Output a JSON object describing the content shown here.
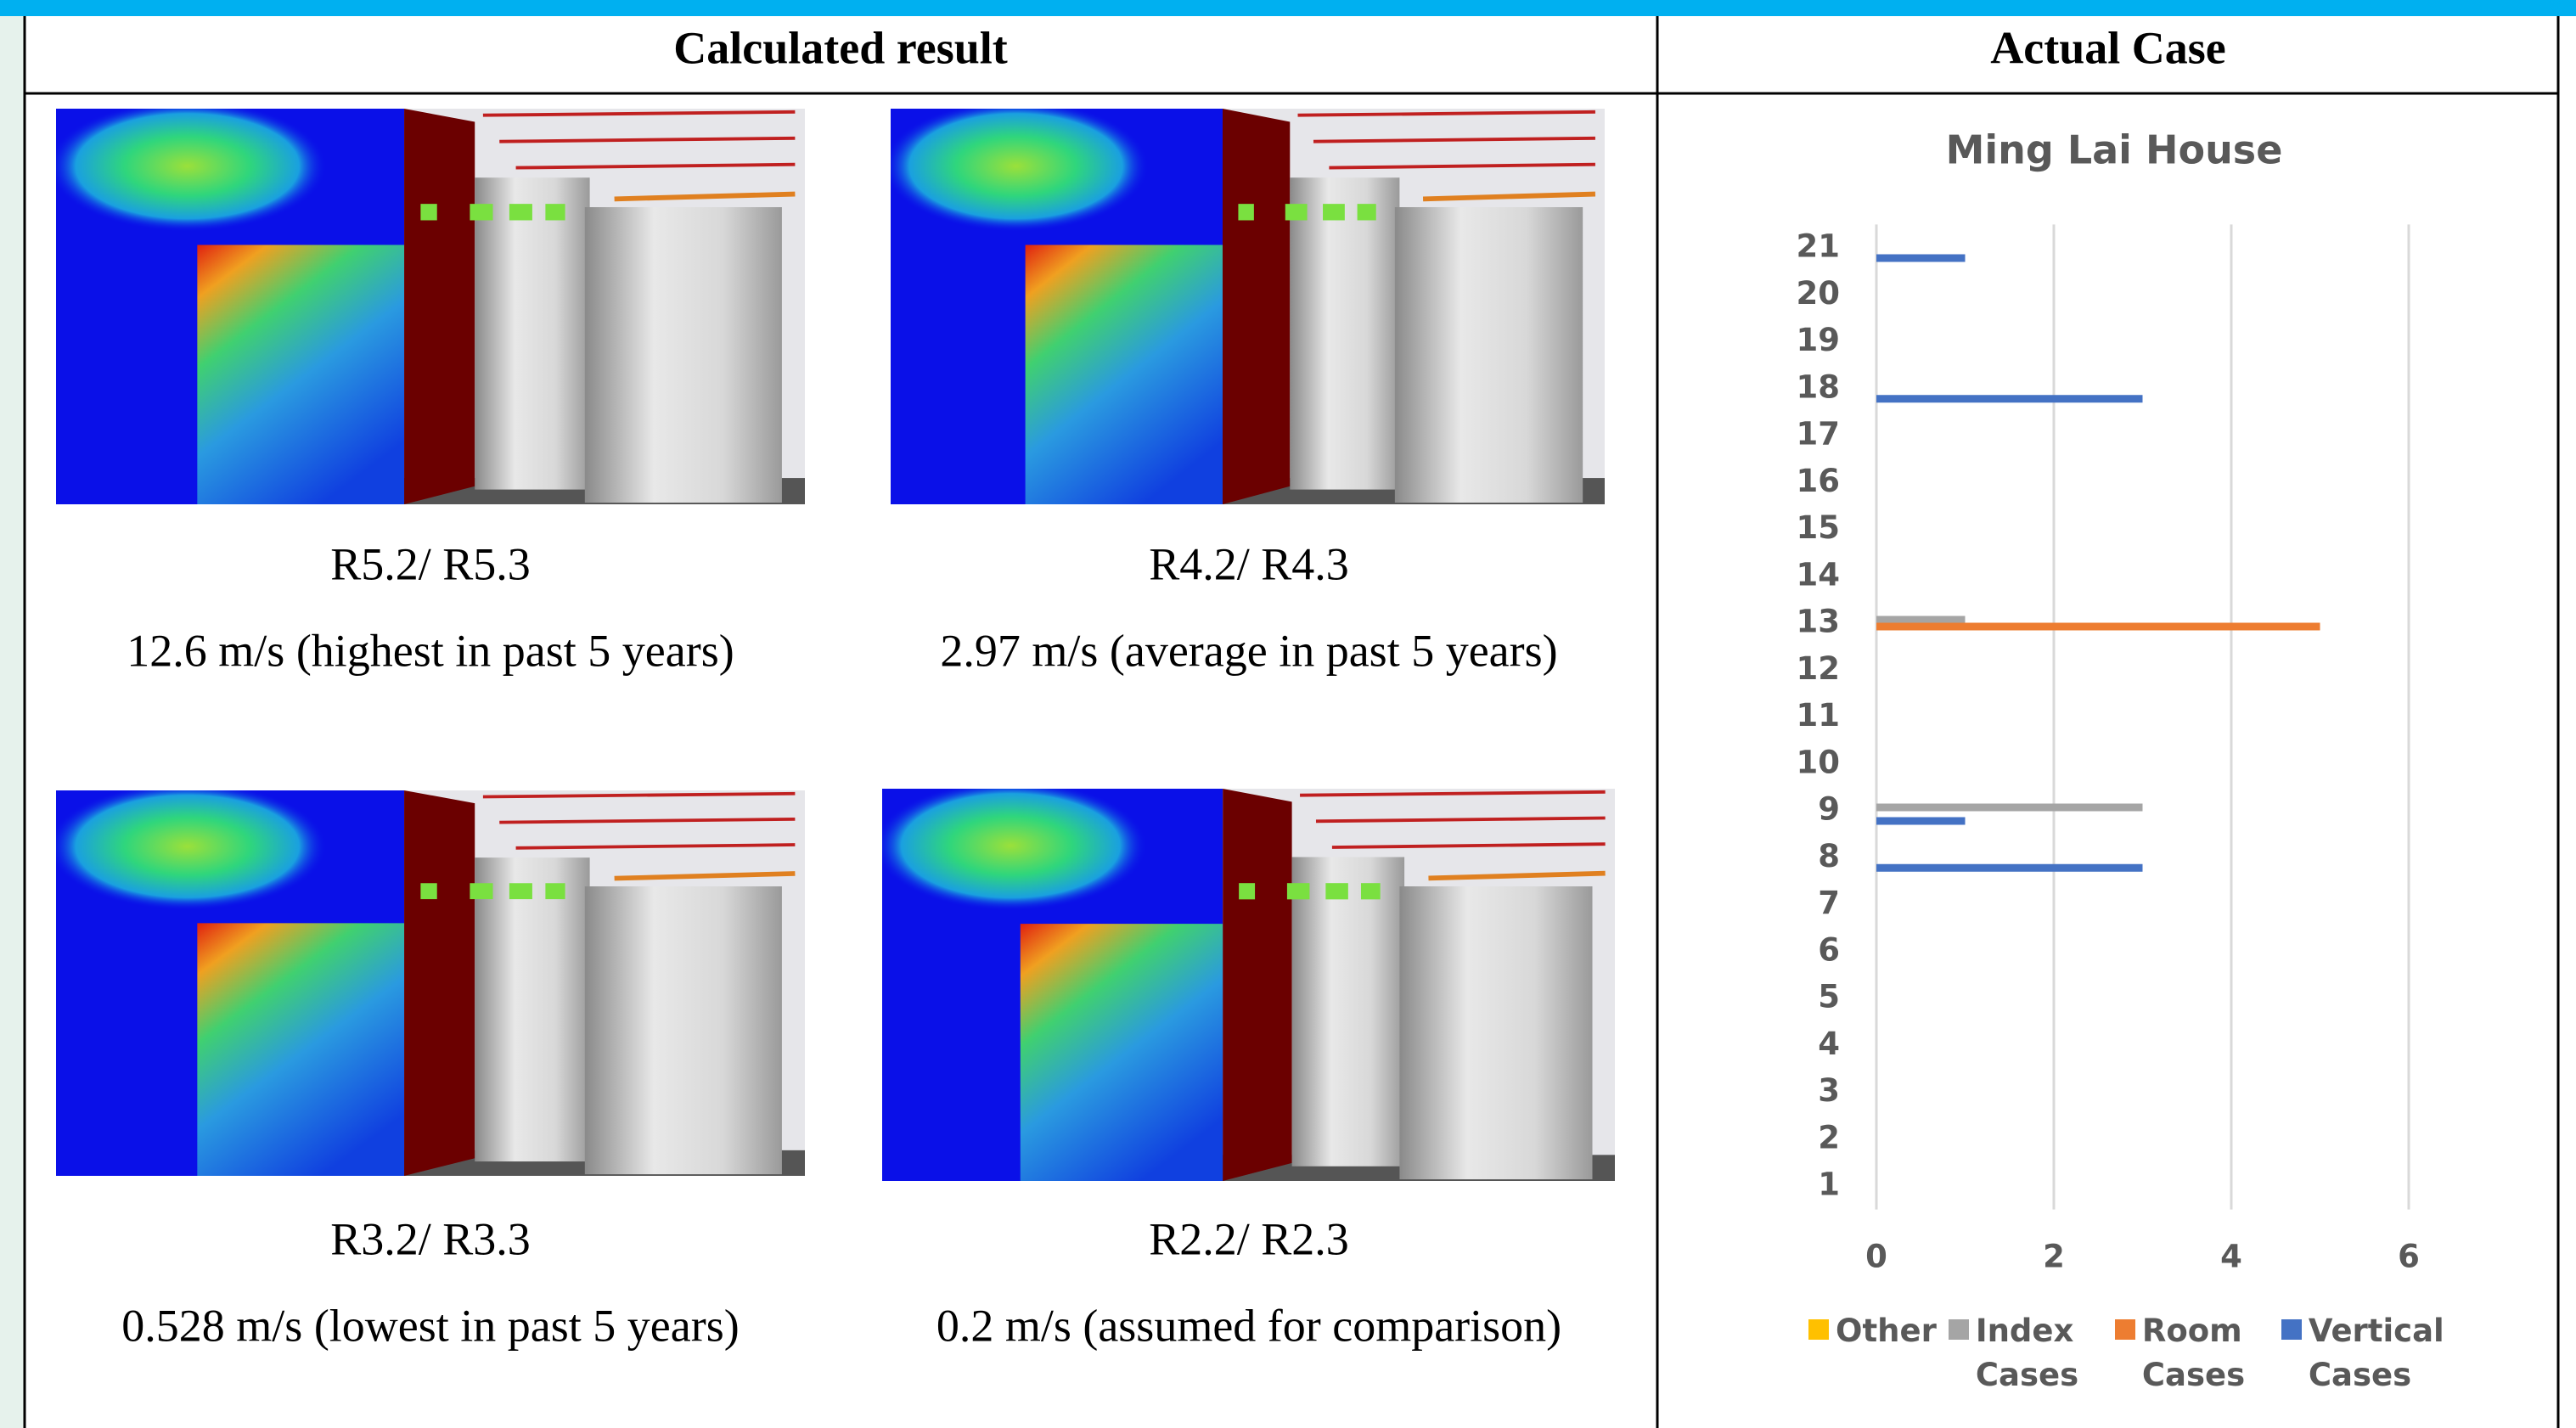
{
  "header": {
    "left": "Calculated result",
    "right": "Actual Case"
  },
  "panels": [
    {
      "case": "R5.2/ R5.3",
      "speed": "12.6 m/s (highest in past 5 years)"
    },
    {
      "case": "R4.2/ R4.3",
      "speed": "2.97 m/s (average in past 5 years)"
    },
    {
      "case": "R3.2/ R3.3",
      "speed": "0.528 m/s (lowest in past 5 years)"
    },
    {
      "case": "R2.2/ R2.3",
      "speed": "0.2 m/s (assumed for comparison)"
    }
  ],
  "chart_data": {
    "type": "bar",
    "orientation": "horizontal",
    "title": "Ming Lai House",
    "categories": [
      "1",
      "2",
      "3",
      "4",
      "5",
      "6",
      "7",
      "8",
      "9",
      "10",
      "11",
      "12",
      "13",
      "14",
      "15",
      "16",
      "17",
      "18",
      "19",
      "20",
      "21"
    ],
    "series": [
      {
        "name": "Other",
        "color": "#ffc000",
        "values": [
          0,
          0,
          0,
          0,
          0,
          0,
          0,
          0,
          0,
          0,
          0,
          0,
          0,
          0,
          0,
          0,
          0,
          0,
          0,
          0,
          0
        ]
      },
      {
        "name": "Index Cases",
        "color": "#a5a5a5",
        "values": [
          0,
          0,
          0,
          0,
          0,
          0,
          0,
          0,
          3,
          0,
          0,
          0,
          1,
          0,
          0,
          0,
          0,
          0,
          0,
          0,
          0
        ]
      },
      {
        "name": "Room Cases",
        "color": "#ed7d31",
        "values": [
          0,
          0,
          0,
          0,
          0,
          0,
          0,
          0,
          0,
          0,
          0,
          0,
          5,
          0,
          0,
          0,
          0,
          0,
          0,
          0,
          0
        ]
      },
      {
        "name": "Vertical Cases",
        "color": "#4472c4",
        "values": [
          0,
          0,
          0,
          0,
          0,
          0,
          0,
          3,
          1,
          0,
          0,
          0,
          0,
          0,
          0,
          0,
          0,
          3,
          0,
          0,
          1
        ]
      }
    ],
    "xlim": [
      0,
      6
    ],
    "xticks": [
      0,
      2,
      4,
      6
    ],
    "grid": true,
    "legend": "bottom"
  }
}
